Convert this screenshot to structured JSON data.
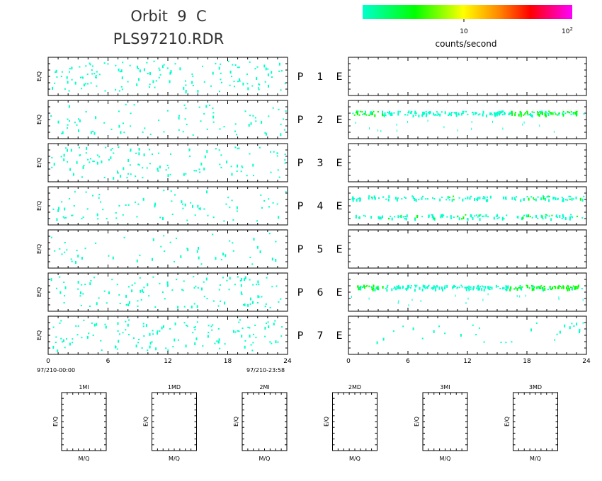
{
  "header": {
    "title_line1": "Orbit  9  C",
    "title_line2": "PLS97210.RDR"
  },
  "colorbar": {
    "label": "counts/second",
    "tick_10": "10",
    "tick_100_base": "10",
    "tick_100_exp": "2",
    "colors": [
      "#00ffcc",
      "#00ff00",
      "#ffff00",
      "#ff8800",
      "#ff0000",
      "#ff00ff"
    ]
  },
  "chart_data": {
    "type": "heatmap",
    "scale": "log",
    "rows": [
      {
        "label": "P",
        "num": "1",
        "right_label": "E",
        "left_density": 0.55,
        "left_ylabel": "E/Q",
        "right_bands": []
      },
      {
        "label": "P",
        "num": "2",
        "right_label": "E",
        "left_density": 0.3,
        "left_ylabel": "E/Q",
        "right_bands": [
          {
            "y": 0.3,
            "strength": "high"
          }
        ]
      },
      {
        "label": "P",
        "num": "3",
        "right_label": "E",
        "left_density": 0.45,
        "left_ylabel": "E/Q",
        "right_bands": []
      },
      {
        "label": "P",
        "num": "4",
        "right_label": "E",
        "left_density": 0.3,
        "left_ylabel": "E/Q",
        "right_bands": [
          {
            "y": 0.25,
            "strength": "low"
          },
          {
            "y": 0.85,
            "strength": "low"
          }
        ]
      },
      {
        "label": "P",
        "num": "5",
        "right_label": "E",
        "left_density": 0.2,
        "left_ylabel": "E/Q",
        "right_bands": []
      },
      {
        "label": "P",
        "num": "6",
        "right_label": "E",
        "left_density": 0.45,
        "left_ylabel": "E/Q",
        "right_bands": [
          {
            "y": 0.35,
            "strength": "high"
          }
        ]
      },
      {
        "label": "P",
        "num": "7",
        "right_label": "E",
        "left_density": 0.5,
        "left_ylabel": "E/Q",
        "right_bands": [
          {
            "y": 0.3,
            "strength": "sparse"
          }
        ]
      }
    ],
    "x_ticks": [
      "0",
      "6",
      "12",
      "18",
      "24"
    ],
    "xlim": [
      0,
      24
    ],
    "start_label": "97/210-00:00",
    "end_label": "97/210-23:58",
    "mini_panels": [
      {
        "title": "1MI",
        "ylabel": "E/Q",
        "xlabel": "M/Q"
      },
      {
        "title": "1MD",
        "ylabel": "E/Q",
        "xlabel": "M/Q"
      },
      {
        "title": "2MI",
        "ylabel": "E/Q",
        "xlabel": "M/Q"
      },
      {
        "title": "2MD",
        "ylabel": "E/Q",
        "xlabel": "M/Q"
      },
      {
        "title": "3MI",
        "ylabel": "E/Q",
        "xlabel": "M/Q"
      },
      {
        "title": "3MD",
        "ylabel": "E/Q",
        "xlabel": "M/Q"
      }
    ]
  }
}
